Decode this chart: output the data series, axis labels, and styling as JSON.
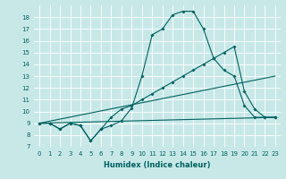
{
  "xlabel": "Humidex (Indice chaleur)",
  "background_color": "#c8e8e8",
  "grid_color": "#aacccc",
  "line_color": "#006060",
  "xlim": [
    -0.5,
    23.5
  ],
  "ylim": [
    7,
    19
  ],
  "xticks": [
    0,
    1,
    2,
    3,
    4,
    5,
    6,
    7,
    8,
    9,
    10,
    11,
    12,
    13,
    14,
    15,
    16,
    17,
    18,
    19,
    20,
    21,
    22,
    23
  ],
  "yticks": [
    7,
    8,
    9,
    10,
    11,
    12,
    13,
    14,
    15,
    16,
    17,
    18
  ],
  "series": [
    {
      "x": [
        0,
        1,
        2,
        3,
        4,
        5,
        6,
        7,
        8,
        9,
        10,
        11,
        12,
        13,
        14,
        15,
        16,
        17,
        18,
        19,
        20,
        21,
        22,
        23
      ],
      "y": [
        9,
        9,
        8.5,
        9,
        8.8,
        7.5,
        8.5,
        8.8,
        9.2,
        10.3,
        13,
        16.5,
        17.0,
        18.2,
        18.5,
        18.5,
        17.0,
        14.5,
        13.5,
        13,
        10.5,
        9.5,
        9.5,
        9.5
      ],
      "marker": true
    },
    {
      "x": [
        0,
        1,
        2,
        3,
        4,
        5,
        6,
        7,
        8,
        9,
        10,
        11,
        12,
        13,
        14,
        15,
        16,
        17,
        18,
        19,
        20,
        21,
        22,
        23
      ],
      "y": [
        9,
        9,
        8.5,
        9,
        8.8,
        7.5,
        8.5,
        9.5,
        10.2,
        10.5,
        11,
        11.5,
        12,
        12.5,
        13,
        13.5,
        14,
        14.5,
        15,
        15.5,
        11.7,
        10.2,
        9.5,
        9.5
      ],
      "marker": true
    },
    {
      "x": [
        0,
        23
      ],
      "y": [
        9,
        9.5
      ],
      "marker": false
    },
    {
      "x": [
        0,
        23
      ],
      "y": [
        9,
        13
      ],
      "marker": false
    }
  ],
  "xlabel_fontsize": 6,
  "tick_fontsize": 5,
  "linewidth": 0.8,
  "markersize": 2.0
}
